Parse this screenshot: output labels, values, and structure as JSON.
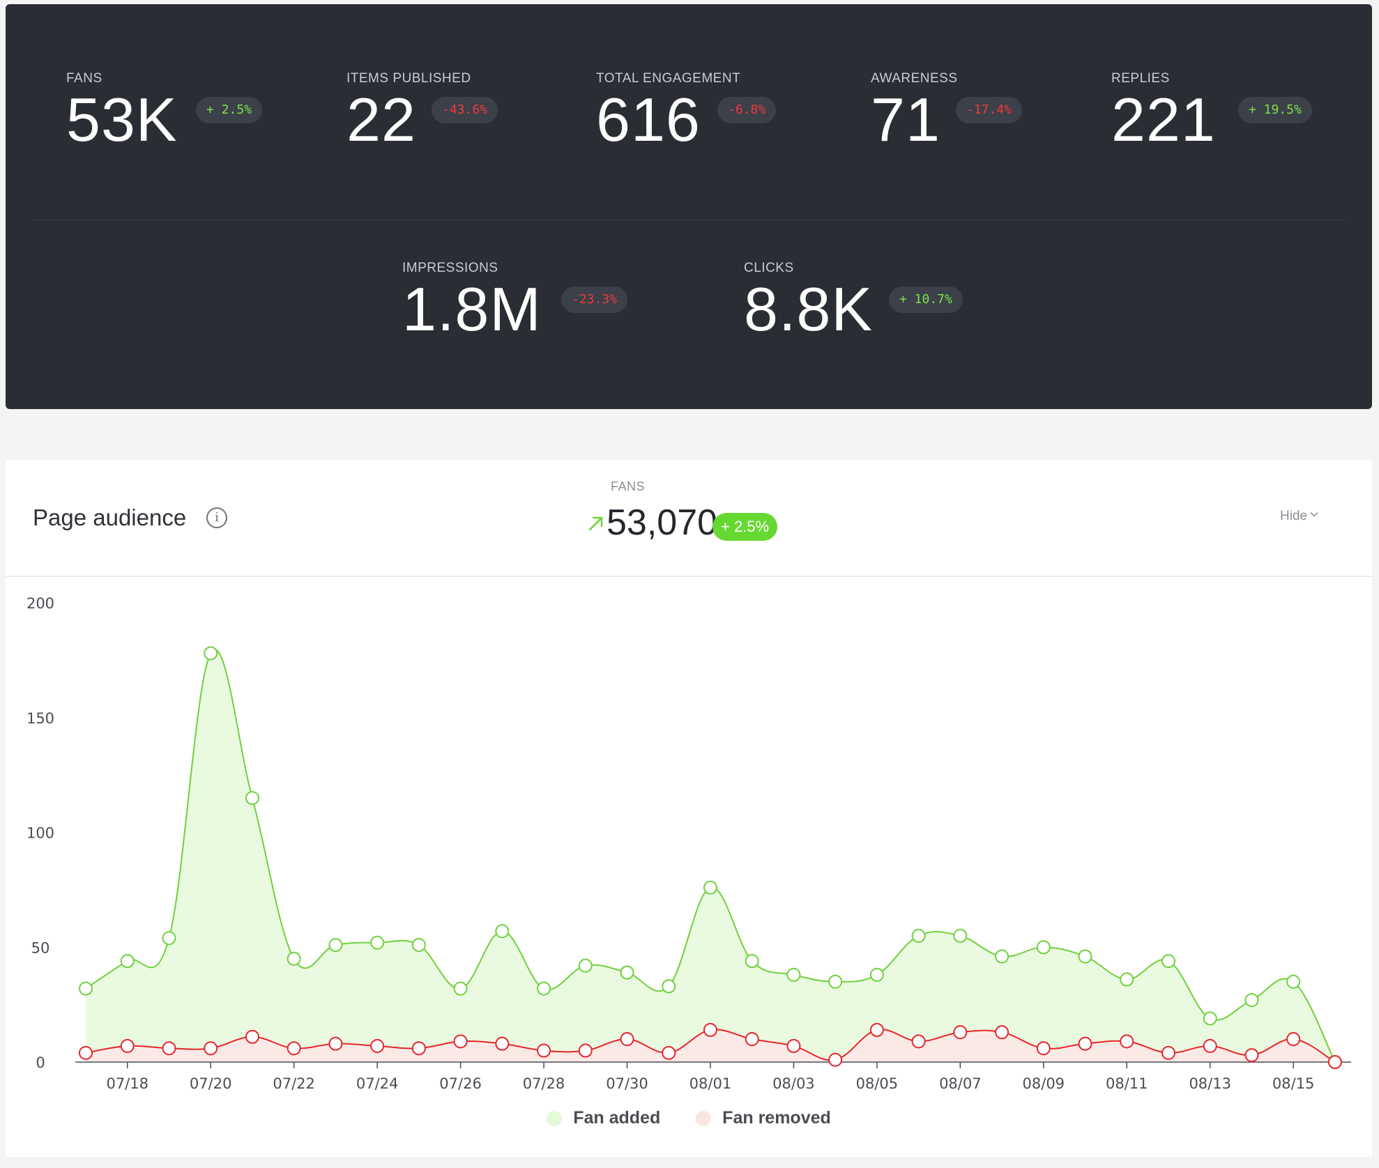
{
  "metrics": [
    {
      "label": "FANS",
      "value": "53K",
      "delta": "+ 2.5%",
      "trend": "up"
    },
    {
      "label": "ITEMS PUBLISHED",
      "value": "22",
      "delta": "-43.6%",
      "trend": "down"
    },
    {
      "label": "TOTAL ENGAGEMENT",
      "value": "616",
      "delta": "-6.8%",
      "trend": "down"
    },
    {
      "label": "AWARENESS",
      "value": "71",
      "delta": "-17.4%",
      "trend": "down"
    },
    {
      "label": "REPLIES",
      "value": "221",
      "delta": "+ 19.5%",
      "trend": "up"
    },
    {
      "label": "IMPRESSIONS",
      "value": "1.8M",
      "delta": "-23.3%",
      "trend": "down"
    },
    {
      "label": "CLICKS",
      "value": "8.8K",
      "delta": "+ 10.7%",
      "trend": "up"
    }
  ],
  "audience": {
    "title": "Page audience",
    "info_icon": "info-icon",
    "fans_label": "FANS",
    "fans_value": "53,070",
    "fans_delta": "+ 2.5%",
    "trend_icon": "arrow-up-right-icon",
    "hide_label": "Hide",
    "hide_icon": "chevron-down-icon"
  },
  "colors": {
    "panel_bg": "#2a2d34",
    "up": "#7ee04a",
    "down": "#f0393c",
    "fan_added": "#6fd13a",
    "fan_added_fill": "#eafae1",
    "fan_removed": "#e5262a",
    "fan_removed_fill": "#fbe9e6",
    "badge_green": "#66d832"
  },
  "chart_data": {
    "type": "area",
    "x": [
      "07/17",
      "07/18",
      "07/19",
      "07/20",
      "07/21",
      "07/22",
      "07/23",
      "07/24",
      "07/25",
      "07/26",
      "07/27",
      "07/28",
      "07/29",
      "07/30",
      "07/31",
      "08/01",
      "08/02",
      "08/03",
      "08/04",
      "08/05",
      "08/06",
      "08/07",
      "08/08",
      "08/09",
      "08/10",
      "08/11",
      "08/12",
      "08/13",
      "08/14",
      "08/15",
      "08/16"
    ],
    "x_tick_labels": [
      "07/18",
      "07/20",
      "07/22",
      "07/24",
      "07/26",
      "07/28",
      "07/30",
      "08/01",
      "08/03",
      "08/05",
      "08/07",
      "08/09",
      "08/11",
      "08/13",
      "08/15"
    ],
    "y_ticks": [
      0,
      50,
      100,
      150,
      200
    ],
    "ylim": [
      0,
      200
    ],
    "series": [
      {
        "name": "Fan added",
        "values": [
          32,
          44,
          54,
          178,
          115,
          45,
          51,
          52,
          51,
          32,
          57,
          32,
          42,
          39,
          33,
          76,
          44,
          38,
          35,
          38,
          55,
          55,
          46,
          50,
          46,
          36,
          44,
          19,
          27,
          35,
          0
        ]
      },
      {
        "name": "Fan removed",
        "values": [
          4,
          7,
          6,
          6,
          11,
          6,
          8,
          7,
          6,
          9,
          8,
          5,
          5,
          10,
          4,
          14,
          10,
          7,
          1,
          14,
          9,
          13,
          13,
          6,
          8,
          9,
          4,
          7,
          3,
          10,
          0
        ]
      }
    ],
    "legend_position": "bottom-center",
    "grid": false
  }
}
